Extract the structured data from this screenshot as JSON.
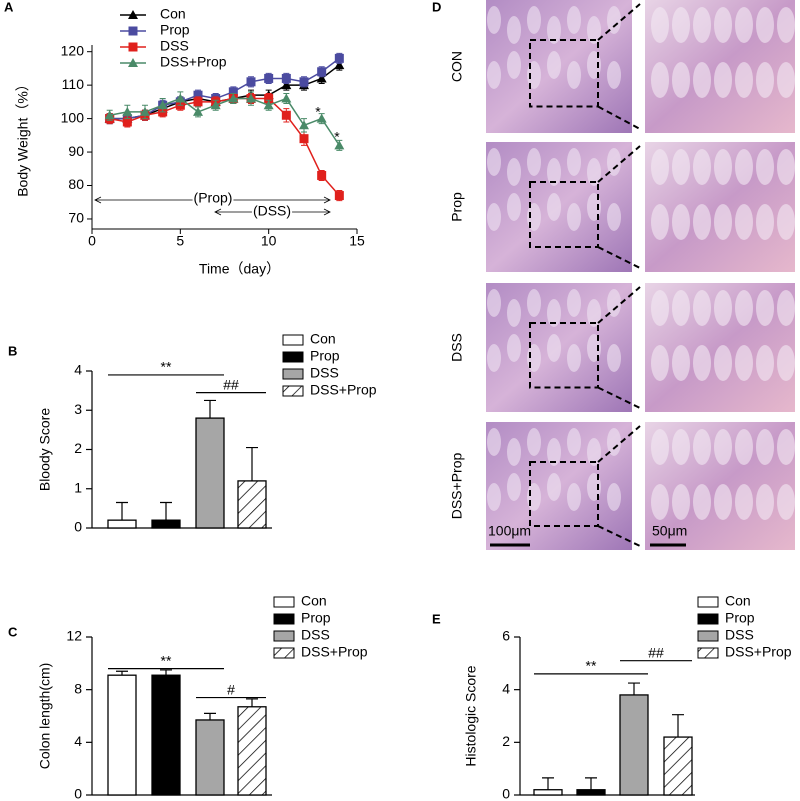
{
  "chart_data": [
    {
      "type": "line",
      "panel": "A",
      "xlabel": "Time（day）",
      "ylabel": "Body Weight（%）",
      "x": [
        1,
        2,
        3,
        4,
        5,
        6,
        7,
        8,
        9,
        10,
        11,
        12,
        13,
        14
      ],
      "series": [
        {
          "name": "Con",
          "color": "#000000",
          "marker": "triangle",
          "values": [
            100,
            100,
            101,
            103,
            105,
            106,
            105,
            106,
            107,
            107,
            110,
            110,
            112,
            116
          ],
          "errors": [
            1.5,
            1.5,
            1.5,
            1.5,
            1.5,
            1.5,
            1.5,
            1.5,
            1.5,
            1.5,
            1.5,
            1.5,
            1.5,
            1.5
          ]
        },
        {
          "name": "Prop",
          "color": "#4b4ba0",
          "marker": "square",
          "values": [
            100,
            100,
            101,
            104,
            105,
            107,
            106,
            108,
            111,
            112,
            112,
            111,
            114,
            118
          ],
          "errors": [
            1.5,
            1.5,
            1.5,
            1.5,
            1.5,
            1.5,
            1.5,
            1.5,
            1.5,
            1.5,
            1.5,
            1.5,
            1.5,
            1.5
          ]
        },
        {
          "name": "DSS",
          "color": "#e0201c",
          "marker": "square",
          "values": [
            100,
            99,
            101,
            102,
            104,
            105,
            105,
            106,
            106,
            106,
            101,
            94,
            83,
            77
          ],
          "errors": [
            1.5,
            1.5,
            1.5,
            1.5,
            1.5,
            1.5,
            1.5,
            1.5,
            1.5,
            1.5,
            2,
            2,
            1.5,
            1.5
          ]
        },
        {
          "name": "DSS+Prop",
          "color": "#4a8a68",
          "marker": "triangle",
          "values": [
            101,
            102,
            102,
            104,
            106,
            102,
            104,
            106,
            106,
            104,
            106,
            98,
            100,
            92
          ],
          "errors": [
            1.5,
            2,
            2,
            2,
            2,
            1.5,
            1.5,
            1.5,
            2,
            1.5,
            1.5,
            2,
            1.5,
            1.5
          ]
        }
      ],
      "xlim": [
        0,
        15
      ],
      "xticks": [
        0,
        5,
        10,
        15
      ],
      "ylim": [
        67,
        122
      ],
      "yticks": [
        70,
        80,
        90,
        100,
        110,
        120
      ],
      "annotations": [
        "(Prop)",
        "(DSS)",
        "*",
        "*"
      ]
    },
    {
      "type": "bar",
      "panel": "B",
      "ylabel": "Bloody Score",
      "categories": [
        "Con",
        "Prop",
        "DSS",
        "DSS+Prop"
      ],
      "values": [
        0.2,
        0.2,
        2.8,
        1.2
      ],
      "errors": [
        0.45,
        0.45,
        0.45,
        0.85
      ],
      "fills": [
        "#ffffff",
        "#000000",
        "#a6a6a6",
        "hatched"
      ],
      "ylim": [
        0,
        4
      ],
      "yticks": [
        0,
        1,
        2,
        3,
        4
      ],
      "annotations": [
        {
          "text": "**",
          "from": 0,
          "to": 2,
          "y": 3.9
        },
        {
          "text": "##",
          "from": 2,
          "to": 3,
          "y": 3.45
        }
      ]
    },
    {
      "type": "bar",
      "panel": "C",
      "ylabel": "Colon length(cm)",
      "categories": [
        "Con",
        "Prop",
        "DSS",
        "DSS+Prop"
      ],
      "values": [
        9.1,
        9.1,
        5.7,
        6.7
      ],
      "errors": [
        0.3,
        0.4,
        0.5,
        0.6
      ],
      "fills": [
        "#ffffff",
        "#000000",
        "#a6a6a6",
        "hatched"
      ],
      "ylim": [
        0,
        12
      ],
      "yticks": [
        0,
        4,
        8,
        12
      ],
      "annotations": [
        {
          "text": "**",
          "from": 0,
          "to": 2,
          "y": 9.6
        },
        {
          "text": "#",
          "from": 2,
          "to": 3,
          "y": 7.4
        }
      ]
    },
    {
      "type": "bar",
      "panel": "E",
      "ylabel": "Histologic  Score",
      "categories": [
        "Con",
        "Prop",
        "DSS",
        "DSS+Prop"
      ],
      "values": [
        0.2,
        0.2,
        3.8,
        2.2
      ],
      "errors": [
        0.45,
        0.45,
        0.45,
        0.85
      ],
      "fills": [
        "#ffffff",
        "#000000",
        "#a6a6a6",
        "hatched"
      ],
      "ylim": [
        0,
        6
      ],
      "yticks": [
        0,
        2,
        4,
        6
      ],
      "annotations": [
        {
          "text": "**",
          "from": 0,
          "to": 2,
          "y": 4.6
        },
        {
          "text": "##",
          "from": 2,
          "to": 3,
          "y": 5.1
        }
      ]
    }
  ],
  "histology": {
    "panel": "D",
    "rows": [
      "CON",
      "Prop",
      "DSS",
      "DSS+Prop"
    ],
    "scale_bars": [
      "100μm",
      "50μm"
    ]
  }
}
